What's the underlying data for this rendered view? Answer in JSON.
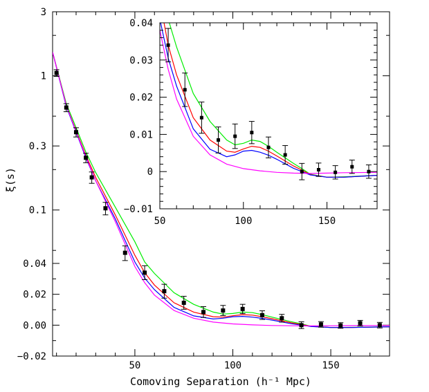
{
  "chart_data": [
    {
      "type": "line",
      "panel": "main",
      "xlabel": "Comoving Separation (h⁻¹ Mpc)",
      "ylabel": "ξ(s)",
      "xlim": [
        8,
        180
      ],
      "xticks": [
        50,
        100,
        150
      ],
      "y_axis": "piecewise: log scale above 0.04, linear below",
      "yticks": [
        "3",
        "1",
        "0.3",
        "0.1",
        "0.04",
        "0.02",
        "0.00",
        "−0.02"
      ],
      "points": {
        "x": [
          10,
          15,
          20,
          25,
          28,
          35,
          45,
          55,
          65,
          75,
          85,
          95,
          105,
          115,
          125,
          135,
          145,
          155,
          165,
          175
        ],
        "y": [
          1.05,
          0.58,
          0.38,
          0.245,
          0.175,
          0.103,
          0.048,
          0.034,
          0.022,
          0.0145,
          0.0085,
          0.0095,
          0.0105,
          0.0065,
          0.0045,
          0.0,
          0.0005,
          -0.0002,
          0.0013,
          0.0
        ],
        "err": [
          0.06,
          0.04,
          0.03,
          0.02,
          0.017,
          0.011,
          0.006,
          0.0045,
          0.0045,
          0.0042,
          0.0035,
          0.0033,
          0.003,
          0.0028,
          0.0025,
          0.0022,
          0.0018,
          0.0018,
          0.0018,
          0.0018
        ]
      },
      "series": [
        {
          "name": "",
          "color": "#00ee00",
          "x": [
            8,
            15,
            20,
            25,
            30,
            40,
            50,
            55,
            60,
            70,
            80,
            90,
            95,
            100,
            105,
            110,
            115,
            120,
            130,
            135,
            140,
            150,
            160,
            180
          ],
          "y": [
            1.5,
            0.62,
            0.41,
            0.27,
            0.19,
            0.105,
            0.058,
            0.041,
            0.0335,
            0.021,
            0.0135,
            0.0085,
            0.0072,
            0.0076,
            0.0085,
            0.0081,
            0.0068,
            0.0052,
            0.0022,
            0.0008,
            -0.0007,
            -0.0015,
            -0.0014,
            -0.001
          ]
        },
        {
          "name": "",
          "color": "#ff0000",
          "x": [
            8,
            15,
            20,
            25,
            30,
            40,
            50,
            55,
            60,
            70,
            80,
            90,
            95,
            100,
            105,
            110,
            115,
            120,
            130,
            135,
            140,
            150,
            160,
            180
          ],
          "y": [
            1.5,
            0.6,
            0.39,
            0.255,
            0.175,
            0.092,
            0.046,
            0.034,
            0.026,
            0.0145,
            0.0085,
            0.0055,
            0.0052,
            0.0061,
            0.0068,
            0.0065,
            0.0055,
            0.0042,
            0.0015,
            0.0004,
            -0.0008,
            -0.0015,
            -0.0015,
            -0.001
          ]
        },
        {
          "name": "",
          "color": "#0000ff",
          "x": [
            8,
            15,
            20,
            25,
            30,
            40,
            50,
            55,
            60,
            70,
            80,
            90,
            95,
            100,
            105,
            110,
            115,
            120,
            130,
            135,
            140,
            150,
            160,
            180
          ],
          "y": [
            1.5,
            0.59,
            0.38,
            0.245,
            0.165,
            0.086,
            0.041,
            0.0305,
            0.023,
            0.0115,
            0.006,
            0.004,
            0.0045,
            0.0055,
            0.0057,
            0.0052,
            0.0044,
            0.0033,
            0.0009,
            0.0,
            -0.0009,
            -0.0015,
            -0.0015,
            -0.001
          ]
        },
        {
          "name": "",
          "color": "#ff00ff",
          "x": [
            8,
            15,
            20,
            25,
            30,
            40,
            50,
            55,
            60,
            70,
            80,
            90,
            100,
            110,
            120,
            130,
            140,
            150,
            160,
            180
          ],
          "y": [
            1.5,
            0.6,
            0.385,
            0.25,
            0.165,
            0.082,
            0.038,
            0.0275,
            0.0195,
            0.0095,
            0.0045,
            0.002,
            0.0008,
            0.0002,
            -0.0002,
            -0.0004,
            -0.0005,
            -0.0004,
            -0.0003,
            -0.0002
          ]
        }
      ]
    },
    {
      "type": "line",
      "panel": "inset",
      "xlim": [
        50,
        180
      ],
      "ylim": [
        -0.01,
        0.04
      ],
      "xticks": [
        50,
        100,
        150
      ],
      "yticks": [
        0.04,
        0.03,
        0.02,
        0.01,
        0,
        -0.01
      ],
      "ytick_labels": [
        "0.04",
        "0.03",
        "0.02",
        "0.01",
        "0",
        "−0.01"
      ],
      "note": "zoom of the main panel for separations 50–180 h⁻¹ Mpc, same points and curves"
    }
  ]
}
